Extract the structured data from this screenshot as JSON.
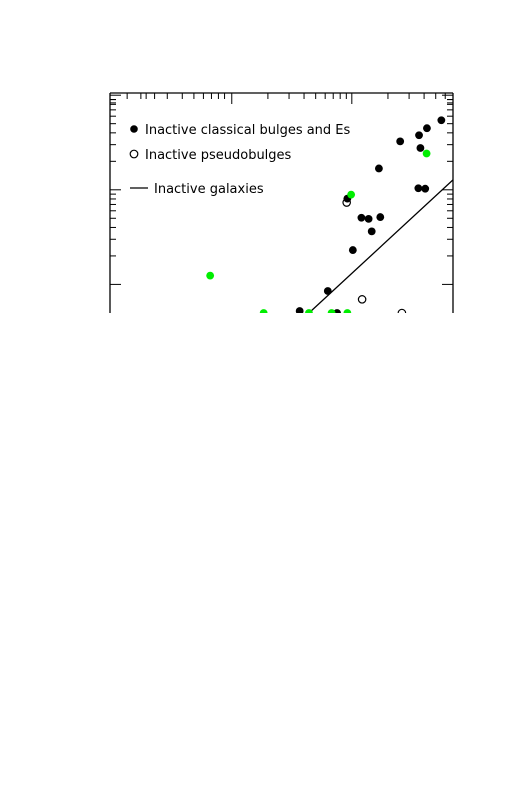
{
  "chart_data": {
    "type": "scatter",
    "x_scale": "log",
    "y_scale": "log",
    "grid": false,
    "legend_placement": "top-left",
    "legend": [
      {
        "label": "Inactive classical bulges and Es",
        "marker": "filled-circle"
      },
      {
        "label": "Inactive pseudobulges",
        "marker": "open-circle"
      },
      {
        "label": "Inactive galaxies",
        "marker": "line"
      }
    ],
    "series": [
      {
        "name": "Inactive classical bulges and Es",
        "marker": "filled-circle",
        "color": "#000000",
        "points": [
          [
            0.924,
            0.84
          ],
          [
            0.966,
            0.876
          ],
          [
            0.846,
            0.78
          ],
          [
            0.905,
            0.75
          ],
          [
            0.784,
            0.657
          ],
          [
            0.692,
            0.52
          ],
          [
            0.733,
            0.433
          ],
          [
            0.708,
            0.286
          ],
          [
            0.788,
            0.436
          ],
          [
            0.763,
            0.371
          ],
          [
            0.754,
            0.428
          ],
          [
            0.635,
            0.1
          ],
          [
            0.553,
            0.009
          ],
          [
            0.899,
            0.567
          ],
          [
            0.919,
            0.565
          ],
          [
            0.901,
            0.808
          ],
          [
            0.662,
            0.0
          ]
        ]
      },
      {
        "name": "Inactive pseudobulges",
        "marker": "open-circle",
        "color": "#000000",
        "points": [
          [
            0.69,
            0.502
          ],
          [
            0.735,
            0.062
          ],
          [
            0.851,
            0.0
          ]
        ]
      },
      {
        "name": "",
        "marker": "filled-circle",
        "color": "#00ee00",
        "points": [
          [
            0.292,
            0.17
          ],
          [
            0.703,
            0.538
          ],
          [
            0.923,
            0.725
          ],
          [
            0.448,
            0.0
          ],
          [
            0.58,
            0.0
          ],
          [
            0.646,
            0.0
          ],
          [
            0.692,
            0.0
          ]
        ]
      }
    ],
    "fit_line": {
      "name": "Inactive galaxies",
      "points": [
        [
          0.58,
          0.0
        ],
        [
          1.0,
          0.605
        ]
      ],
      "color": "#000000"
    }
  }
}
